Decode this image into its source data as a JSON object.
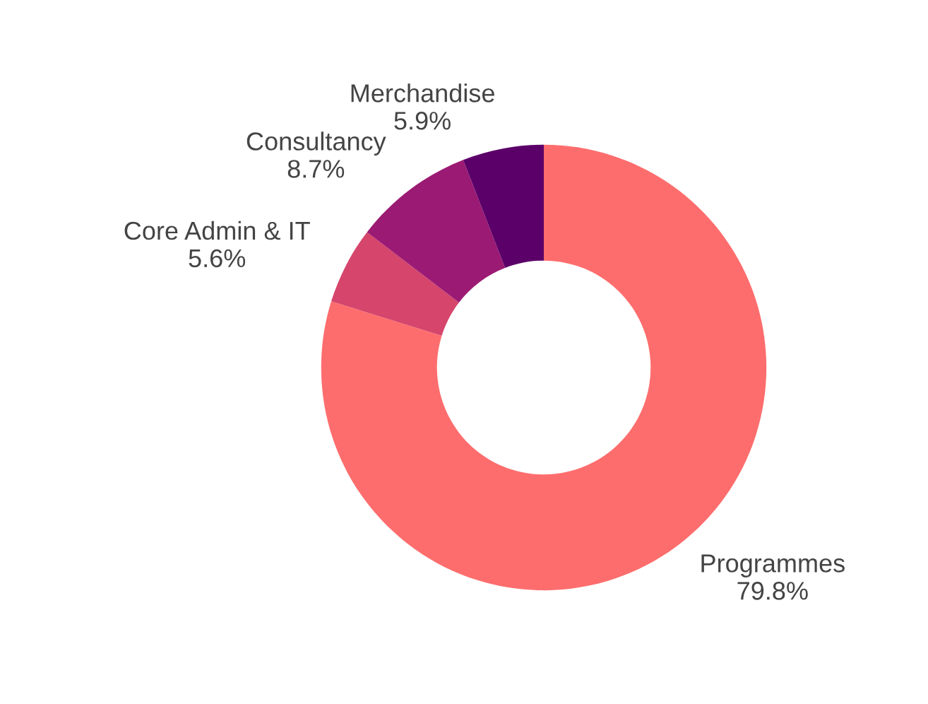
{
  "chart_data": {
    "type": "donut",
    "categories": [
      "Programmes",
      "Core Admin & IT",
      "Consultancy",
      "Merchandise"
    ],
    "values": [
      79.8,
      5.6,
      8.7,
      5.9
    ],
    "colors": [
      "#fe6d6d",
      "#d5456c",
      "#9b1a73",
      "#5c0069"
    ],
    "value_labels": [
      "79.8%",
      "5.6%",
      "8.7%",
      "5.9%"
    ],
    "legend": false
  }
}
